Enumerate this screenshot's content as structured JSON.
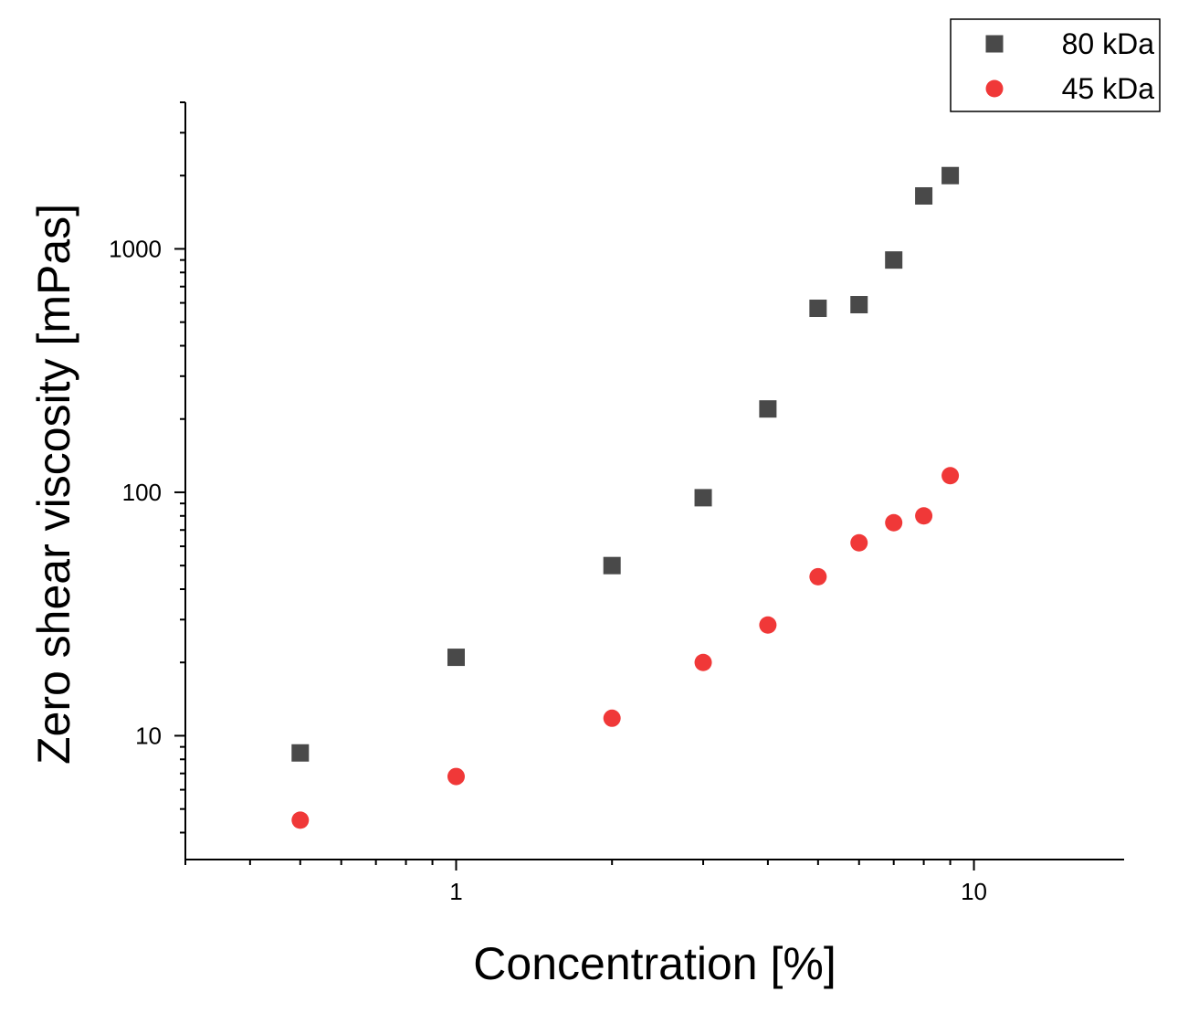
{
  "chart_data": {
    "type": "scatter",
    "xscale": "log",
    "yscale": "log",
    "xlabel": "Concentration [%]",
    "ylabel": "Zero shear viscosity [mPas]",
    "xlim": [
      0.3,
      19.5
    ],
    "ylim": [
      3.1,
      4000
    ],
    "xticks": [
      1,
      10
    ],
    "xtick_labels": [
      "1",
      "10"
    ],
    "yticks": [
      10,
      100,
      1000
    ],
    "ytick_labels": [
      "10",
      "100",
      "1000"
    ],
    "legend_position": "top-right",
    "series": [
      {
        "name": "80 kDa",
        "marker": "square",
        "color": "#494949",
        "x": [
          0.5,
          1,
          2,
          3,
          4,
          5,
          6,
          7,
          8,
          9
        ],
        "y": [
          8.5,
          21,
          50,
          95,
          220,
          570,
          590,
          900,
          1650,
          2000
        ]
      },
      {
        "name": "45 kDa",
        "marker": "circle",
        "color": "#f03838",
        "x": [
          0.5,
          1,
          2,
          3,
          4,
          5,
          6,
          7,
          8,
          9
        ],
        "y": [
          4.5,
          6.8,
          11.8,
          20,
          28.5,
          45,
          62,
          75,
          80,
          117
        ]
      }
    ]
  }
}
